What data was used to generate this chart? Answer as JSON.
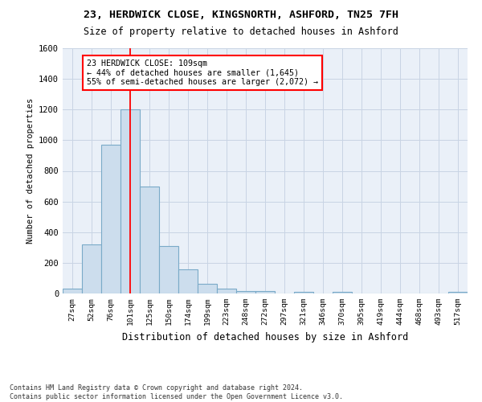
{
  "title1": "23, HERDWICK CLOSE, KINGSNORTH, ASHFORD, TN25 7FH",
  "title2": "Size of property relative to detached houses in Ashford",
  "xlabel": "Distribution of detached houses by size in Ashford",
  "ylabel": "Number of detached properties",
  "footnote1": "Contains HM Land Registry data © Crown copyright and database right 2024.",
  "footnote2": "Contains public sector information licensed under the Open Government Licence v3.0.",
  "bar_labels": [
    "27sqm",
    "52sqm",
    "76sqm",
    "101sqm",
    "125sqm",
    "150sqm",
    "174sqm",
    "199sqm",
    "223sqm",
    "248sqm",
    "272sqm",
    "297sqm",
    "321sqm",
    "346sqm",
    "370sqm",
    "395sqm",
    "419sqm",
    "444sqm",
    "468sqm",
    "493sqm",
    "517sqm"
  ],
  "bar_values": [
    30,
    320,
    970,
    1200,
    700,
    310,
    155,
    65,
    30,
    15,
    15,
    0,
    10,
    0,
    12,
    0,
    0,
    0,
    0,
    0,
    10
  ],
  "bar_color": "#ccdded",
  "bar_edge_color": "#7aaac8",
  "ylim": [
    0,
    1600
  ],
  "yticks": [
    0,
    200,
    400,
    600,
    800,
    1000,
    1200,
    1400,
    1600
  ],
  "property_label": "23 HERDWICK CLOSE: 109sqm",
  "annotation_line1": "← 44% of detached houses are smaller (1,645)",
  "annotation_line2": "55% of semi-detached houses are larger (2,072) →",
  "grid_color": "#c8d4e4",
  "bg_color": "#eaf0f8"
}
